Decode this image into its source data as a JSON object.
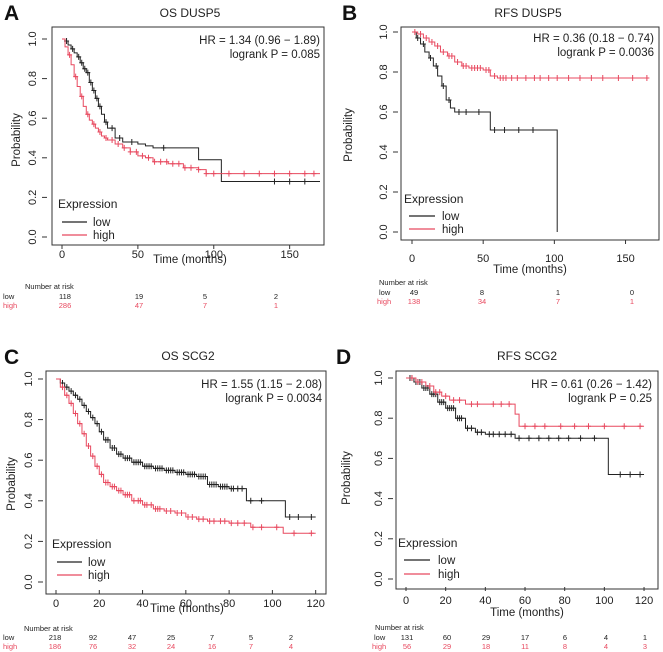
{
  "panels": [
    {
      "label": "A",
      "title": "OS DUSP5",
      "hr": "HR = 1.34 (0.96 − 1.89)",
      "logrank": "logrank P = 0.085",
      "xlabel": "Time (months)",
      "ylabel": "Probability",
      "xticks": [
        "0",
        "50",
        "100",
        "150"
      ],
      "yticks": [
        "0.0",
        "0.2",
        "0.4",
        "0.6",
        "0.8",
        "1.0"
      ],
      "legend_title": "Expression",
      "legend": [
        "low",
        "high"
      ],
      "risk_header": "Number at risk",
      "risk_rows": [
        "low",
        "high"
      ],
      "risk_low": [
        "118",
        "19",
        "5",
        "2"
      ],
      "risk_high": [
        "286",
        "47",
        "7",
        "1"
      ]
    },
    {
      "label": "B",
      "title": "RFS DUSP5",
      "hr": "HR = 0.36 (0.18 − 0.74)",
      "logrank": "logrank P = 0.0036",
      "xlabel": "Time (months)",
      "ylabel": "Probability",
      "xticks": [
        "0",
        "50",
        "100",
        "150"
      ],
      "yticks": [
        "0.0",
        "0.2",
        "0.4",
        "0.6",
        "0.8",
        "1.0"
      ],
      "legend_title": "Expression",
      "legend": [
        "low",
        "high"
      ],
      "risk_header": "Number at risk",
      "risk_rows": [
        "low",
        "high"
      ],
      "risk_low": [
        "49",
        "8",
        "1",
        "0"
      ],
      "risk_high": [
        "138",
        "34",
        "7",
        "1"
      ]
    },
    {
      "label": "C",
      "title": "OS SCG2",
      "hr": "HR = 1.55 (1.15 − 2.08)",
      "logrank": "logrank P = 0.0034",
      "xlabel": "Time (months)",
      "ylabel": "Probability",
      "xticks": [
        "0",
        "20",
        "40",
        "60",
        "80",
        "100",
        "120"
      ],
      "yticks": [
        "0.0",
        "0.2",
        "0.4",
        "0.6",
        "0.8",
        "1.0"
      ],
      "legend_title": "Expression",
      "legend": [
        "low",
        "high"
      ],
      "risk_header": "Number at risk",
      "risk_rows": [
        "low",
        "high"
      ],
      "risk_low": [
        "218",
        "92",
        "47",
        "25",
        "7",
        "5",
        "2"
      ],
      "risk_high": [
        "186",
        "76",
        "32",
        "24",
        "16",
        "7",
        "4"
      ]
    },
    {
      "label": "D",
      "title": "RFS SCG2",
      "hr": "HR = 0.61 (0.26 − 1.42)",
      "logrank": "logrank P = 0.25",
      "xlabel": "Time (months)",
      "ylabel": "Probability",
      "xticks": [
        "0",
        "20",
        "40",
        "60",
        "80",
        "100",
        "120"
      ],
      "yticks": [
        "0.0",
        "0.2",
        "0.4",
        "0.6",
        "0.8",
        "1.0"
      ],
      "legend_title": "Expression",
      "legend": [
        "low",
        "high"
      ],
      "risk_header": "Number at risk",
      "risk_rows": [
        "low",
        "high"
      ],
      "risk_low": [
        "131",
        "60",
        "29",
        "17",
        "6",
        "4",
        "1"
      ],
      "risk_high": [
        "56",
        "29",
        "18",
        "11",
        "8",
        "4",
        "3"
      ]
    }
  ],
  "colors": {
    "low": "#222222",
    "high": "#e8495f"
  },
  "chart_data": [
    {
      "type": "line",
      "title": "OS DUSP5",
      "xlabel": "Time (months)",
      "ylabel": "Probability",
      "xlim": [
        0,
        170
      ],
      "ylim": [
        0,
        1
      ],
      "xticks": [
        0,
        50,
        100,
        150
      ],
      "yticks": [
        0,
        0.2,
        0.4,
        0.6,
        0.8,
        1.0
      ],
      "series": [
        {
          "name": "low",
          "color": "#222222",
          "x": [
            0,
            2,
            4,
            6,
            8,
            10,
            12,
            14,
            16,
            18,
            20,
            22,
            24,
            26,
            28,
            30,
            35,
            40,
            50,
            55,
            60,
            70,
            80,
            90,
            100,
            105,
            170
          ],
          "y": [
            1,
            0.99,
            0.97,
            0.95,
            0.93,
            0.91,
            0.88,
            0.85,
            0.83,
            0.78,
            0.74,
            0.7,
            0.66,
            0.62,
            0.58,
            0.55,
            0.5,
            0.48,
            0.47,
            0.46,
            0.45,
            0.45,
            0.45,
            0.39,
            0.39,
            0.28,
            0.28
          ],
          "censor_x": [
            3,
            7,
            11,
            13,
            15,
            17,
            19,
            21,
            23,
            25,
            29,
            33,
            38,
            46,
            67,
            140,
            150,
            160
          ]
        },
        {
          "name": "high",
          "color": "#e8495f",
          "x": [
            0,
            2,
            4,
            6,
            8,
            10,
            12,
            14,
            16,
            18,
            20,
            22,
            24,
            26,
            28,
            30,
            35,
            40,
            45,
            50,
            55,
            60,
            70,
            80,
            90,
            95,
            170
          ],
          "y": [
            1,
            0.96,
            0.92,
            0.87,
            0.81,
            0.76,
            0.71,
            0.66,
            0.62,
            0.59,
            0.57,
            0.55,
            0.53,
            0.51,
            0.5,
            0.49,
            0.47,
            0.45,
            0.43,
            0.41,
            0.4,
            0.38,
            0.37,
            0.35,
            0.34,
            0.32,
            0.32
          ],
          "censor_x": [
            5,
            9,
            13,
            17,
            21,
            25,
            29,
            33,
            37,
            41,
            45,
            49,
            53,
            57,
            61,
            65,
            69,
            73,
            77,
            81,
            85,
            90,
            95,
            100,
            110,
            120,
            130,
            140,
            150,
            160,
            166
          ]
        }
      ],
      "annotations": [
        "HR = 1.34 (0.96 − 1.89)",
        "logrank P = 0.085"
      ]
    },
    {
      "type": "line",
      "title": "RFS DUSP5",
      "xlabel": "Time (months)",
      "ylabel": "Probability",
      "xlim": [
        0,
        170
      ],
      "ylim": [
        0,
        1
      ],
      "xticks": [
        0,
        50,
        100,
        150
      ],
      "yticks": [
        0,
        0.2,
        0.4,
        0.6,
        0.8,
        1.0
      ],
      "series": [
        {
          "name": "low",
          "color": "#222222",
          "x": [
            0,
            3,
            6,
            9,
            12,
            15,
            18,
            21,
            24,
            27,
            30,
            55,
            102,
            102
          ],
          "y": [
            1,
            0.97,
            0.94,
            0.9,
            0.87,
            0.83,
            0.78,
            0.73,
            0.66,
            0.62,
            0.6,
            0.51,
            0.51,
            0
          ],
          "censor_x": [
            4,
            8,
            13,
            17,
            22,
            26,
            33,
            38,
            47,
            58,
            65,
            75,
            85
          ]
        },
        {
          "name": "high",
          "color": "#e8495f",
          "x": [
            0,
            4,
            8,
            12,
            16,
            20,
            25,
            30,
            35,
            40,
            50,
            55,
            60,
            165
          ],
          "y": [
            1,
            0.99,
            0.97,
            0.95,
            0.93,
            0.9,
            0.88,
            0.85,
            0.83,
            0.82,
            0.81,
            0.78,
            0.77,
            0.77
          ],
          "censor_x": [
            2,
            6,
            10,
            14,
            18,
            22,
            26,
            28,
            32,
            36,
            38,
            42,
            44,
            46,
            48,
            52,
            54,
            58,
            62,
            64,
            66,
            70,
            74,
            80,
            86,
            90,
            96,
            102,
            110,
            118,
            126,
            134,
            145,
            155,
            165
          ]
        }
      ],
      "annotations": [
        "HR = 0.36 (0.18 − 0.74)",
        "logrank P = 0.0036"
      ]
    },
    {
      "type": "line",
      "title": "OS SCG2",
      "xlabel": "Time (months)",
      "ylabel": "Probability",
      "xlim": [
        0,
        122
      ],
      "ylim": [
        0,
        1
      ],
      "xticks": [
        0,
        20,
        40,
        60,
        80,
        100,
        120
      ],
      "yticks": [
        0,
        0.2,
        0.4,
        0.6,
        0.8,
        1.0
      ],
      "series": [
        {
          "name": "low",
          "color": "#222222",
          "x": [
            0,
            2,
            4,
            6,
            8,
            10,
            12,
            14,
            16,
            18,
            20,
            22,
            25,
            28,
            31,
            35,
            40,
            45,
            50,
            55,
            60,
            65,
            70,
            75,
            80,
            88,
            100,
            106,
            120
          ],
          "y": [
            1,
            0.98,
            0.96,
            0.94,
            0.92,
            0.9,
            0.87,
            0.84,
            0.81,
            0.78,
            0.74,
            0.7,
            0.66,
            0.63,
            0.61,
            0.59,
            0.57,
            0.56,
            0.55,
            0.54,
            0.53,
            0.52,
            0.48,
            0.47,
            0.46,
            0.4,
            0.4,
            0.32,
            0.32
          ],
          "censor_x": [
            3,
            5,
            7,
            9,
            11,
            13,
            15,
            17,
            19,
            21,
            23,
            24,
            26,
            27,
            29,
            30,
            32,
            33,
            34,
            36,
            37,
            38,
            39,
            41,
            42,
            43,
            44,
            46,
            47,
            48,
            49,
            51,
            52,
            53,
            54,
            56,
            57,
            58,
            59,
            61,
            62,
            63,
            64,
            66,
            67,
            68,
            69,
            71,
            72,
            73,
            74,
            76,
            77,
            78,
            79,
            81,
            82,
            84,
            86,
            90,
            95,
            108,
            112,
            118
          ]
        },
        {
          "name": "high",
          "color": "#e8495f",
          "x": [
            0,
            2,
            4,
            6,
            8,
            10,
            12,
            14,
            16,
            18,
            20,
            22,
            25,
            28,
            31,
            35,
            40,
            45,
            50,
            55,
            60,
            65,
            70,
            75,
            80,
            90,
            100,
            105,
            120
          ],
          "y": [
            1,
            0.96,
            0.92,
            0.88,
            0.83,
            0.78,
            0.73,
            0.67,
            0.62,
            0.57,
            0.53,
            0.49,
            0.47,
            0.45,
            0.43,
            0.4,
            0.38,
            0.36,
            0.35,
            0.34,
            0.32,
            0.31,
            0.3,
            0.3,
            0.29,
            0.27,
            0.27,
            0.24,
            0.24
          ],
          "censor_x": [
            3,
            5,
            7,
            9,
            11,
            13,
            15,
            17,
            19,
            21,
            23,
            24,
            26,
            27,
            29,
            30,
            32,
            33,
            34,
            36,
            38,
            39,
            41,
            42,
            44,
            46,
            47,
            48,
            51,
            53,
            56,
            58,
            61,
            63,
            66,
            68,
            71,
            73,
            76,
            78,
            81,
            84,
            87,
            91,
            95,
            102,
            110,
            118
          ]
        }
      ],
      "annotations": [
        "HR = 1.55 (1.15 − 2.08)",
        "logrank P = 0.0034"
      ]
    },
    {
      "type": "line",
      "title": "RFS SCG2",
      "xlabel": "Time (months)",
      "ylabel": "Probability",
      "xlim": [
        0,
        122
      ],
      "ylim": [
        0,
        1
      ],
      "xticks": [
        0,
        20,
        40,
        60,
        80,
        100,
        120
      ],
      "yticks": [
        0,
        0.2,
        0.4,
        0.6,
        0.8,
        1.0
      ],
      "series": [
        {
          "name": "low",
          "color": "#222222",
          "x": [
            0,
            4,
            8,
            12,
            16,
            20,
            25,
            30,
            35,
            40,
            55,
            100,
            102,
            120
          ],
          "y": [
            1,
            0.98,
            0.95,
            0.92,
            0.88,
            0.85,
            0.8,
            0.75,
            0.73,
            0.72,
            0.7,
            0.7,
            0.52,
            0.52
          ],
          "censor_x": [
            2,
            3,
            5,
            6,
            7,
            9,
            10,
            11,
            13,
            14,
            15,
            17,
            18,
            19,
            21,
            22,
            23,
            24,
            26,
            27,
            28,
            31,
            33,
            36,
            38,
            42,
            44,
            47,
            50,
            53,
            57,
            62,
            67,
            72,
            77,
            82,
            88,
            95,
            108,
            113,
            118
          ]
        },
        {
          "name": "high",
          "color": "#e8495f",
          "x": [
            0,
            5,
            10,
            14,
            18,
            22,
            30,
            40,
            50,
            55,
            57,
            120
          ],
          "y": [
            1,
            0.98,
            0.96,
            0.93,
            0.91,
            0.89,
            0.87,
            0.87,
            0.87,
            0.82,
            0.76,
            0.76
          ],
          "censor_x": [
            3,
            6,
            8,
            12,
            15,
            17,
            20,
            24,
            27,
            33,
            36,
            44,
            48,
            52,
            60,
            65,
            70,
            78,
            85,
            92,
            100,
            110,
            118
          ]
        }
      ],
      "annotations": [
        "HR = 0.61 (0.26 − 1.42)",
        "logrank P = 0.25"
      ]
    }
  ]
}
